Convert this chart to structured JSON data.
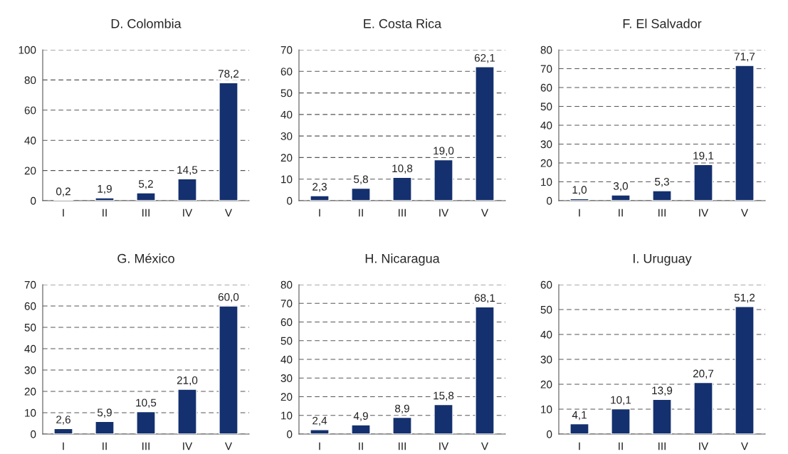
{
  "chart_data": [
    {
      "type": "bar",
      "title": "D. Colombia",
      "categories": [
        "I",
        "II",
        "III",
        "IV",
        "V"
      ],
      "values": [
        0.2,
        1.9,
        5.2,
        14.5,
        78.2
      ],
      "value_labels": [
        "0,2",
        "1,9",
        "5,2",
        "14,5",
        "78,2"
      ],
      "color": "#14306e",
      "ylim": [
        0,
        100
      ],
      "yticks": [
        0,
        20,
        40,
        60,
        80,
        100
      ],
      "grid": "y",
      "line_style": "dashed"
    },
    {
      "type": "bar",
      "title": "E. Costa Rica",
      "categories": [
        "I",
        "II",
        "III",
        "IV",
        "V"
      ],
      "values": [
        2.3,
        5.8,
        10.8,
        19.0,
        62.1
      ],
      "value_labels": [
        "2,3",
        "5,8",
        "10,8",
        "19,0",
        "62,1"
      ],
      "color": "#14306e",
      "ylim": [
        0,
        70
      ],
      "yticks": [
        0,
        10,
        20,
        30,
        40,
        50,
        60,
        70
      ],
      "grid": "y",
      "line_style": "dashed"
    },
    {
      "type": "bar",
      "title": "F. El Salvador",
      "categories": [
        "I",
        "II",
        "III",
        "IV",
        "V"
      ],
      "values": [
        1.0,
        3.0,
        5.3,
        19.1,
        71.7
      ],
      "value_labels": [
        "1,0",
        "3,0",
        "5,3",
        "19,1",
        "71,7"
      ],
      "color": "#14306e",
      "ylim": [
        0,
        80
      ],
      "yticks": [
        0,
        10,
        20,
        30,
        40,
        50,
        60,
        70,
        80
      ],
      "grid": "y",
      "line_style": "dashed"
    },
    {
      "type": "bar",
      "title": "G. México",
      "categories": [
        "I",
        "II",
        "III",
        "IV",
        "V"
      ],
      "values": [
        2.6,
        5.9,
        10.5,
        21.0,
        60.0
      ],
      "value_labels": [
        "2,6",
        "5,9",
        "10,5",
        "21,0",
        "60,0"
      ],
      "color": "#14306e",
      "ylim": [
        0,
        70
      ],
      "yticks": [
        0,
        10,
        20,
        30,
        40,
        50,
        60,
        70
      ],
      "grid": "y",
      "line_style": "dashed"
    },
    {
      "type": "bar",
      "title": "H. Nicaragua",
      "categories": [
        "I",
        "II",
        "III",
        "IV",
        "V"
      ],
      "values": [
        2.4,
        4.9,
        8.9,
        15.8,
        68.1
      ],
      "value_labels": [
        "2,4",
        "4,9",
        "8,9",
        "15,8",
        "68,1"
      ],
      "color": "#14306e",
      "ylim": [
        0,
        80
      ],
      "yticks": [
        0,
        10,
        20,
        30,
        40,
        50,
        60,
        70,
        80
      ],
      "grid": "y",
      "line_style": "dashed"
    },
    {
      "type": "bar",
      "title": "I. Uruguay",
      "categories": [
        "I",
        "II",
        "III",
        "IV",
        "V"
      ],
      "values": [
        4.1,
        10.1,
        13.9,
        20.7,
        51.2
      ],
      "value_labels": [
        "4,1",
        "10,1",
        "13,9",
        "20,7",
        "51,2"
      ],
      "color": "#14306e",
      "ylim": [
        0,
        60
      ],
      "yticks": [
        0,
        10,
        20,
        30,
        40,
        50,
        60
      ],
      "grid": "y",
      "line_style": "dashed"
    }
  ]
}
